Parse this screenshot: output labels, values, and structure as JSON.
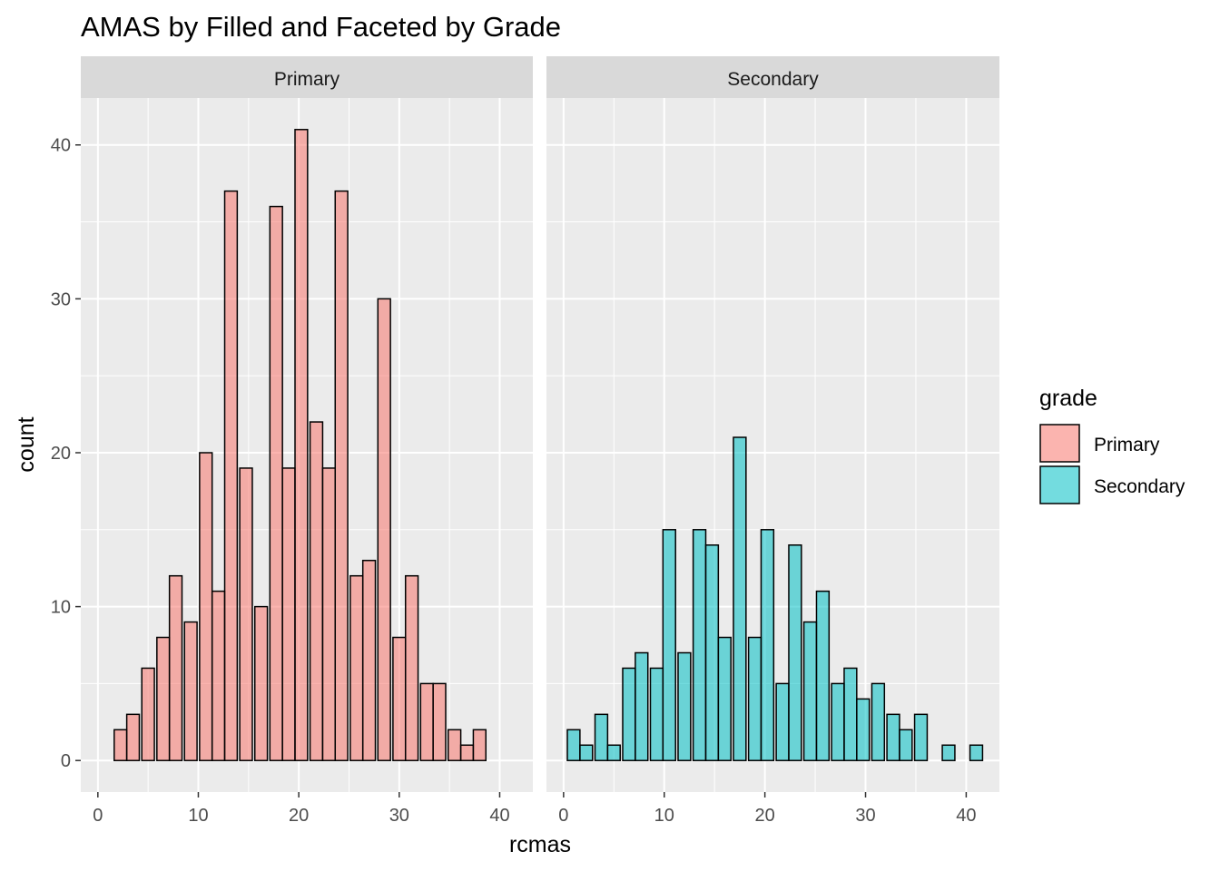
{
  "chart_data": {
    "type": "bar",
    "title": "AMAS by Filled and Faceted by Grade",
    "xlabel": "rcmas",
    "ylabel": "count",
    "xlim": [
      -1.7,
      43.3
    ],
    "ylim": [
      -2.05,
      43.05
    ],
    "xticks": [
      0,
      10,
      20,
      30,
      40
    ],
    "yticks": [
      0,
      10,
      20,
      30,
      40
    ],
    "grid": true,
    "legend": {
      "title": "grade",
      "position": "right",
      "entries": [
        {
          "label": "Primary",
          "color": "#F8766D"
        },
        {
          "label": "Secondary",
          "color": "#00BFC4"
        }
      ]
    },
    "facets": [
      {
        "label": "Primary",
        "color": "#F8766D",
        "bins": [
          {
            "x": 1.0,
            "count": 0
          },
          {
            "x": 2.25,
            "count": 2
          },
          {
            "x": 3.5,
            "count": 3
          },
          {
            "x": 5.0,
            "count": 6
          },
          {
            "x": 6.5,
            "count": 8
          },
          {
            "x": 7.75,
            "count": 12
          },
          {
            "x": 9.25,
            "count": 9
          },
          {
            "x": 10.75,
            "count": 20
          },
          {
            "x": 12.0,
            "count": 11
          },
          {
            "x": 13.25,
            "count": 37
          },
          {
            "x": 14.75,
            "count": 19
          },
          {
            "x": 16.25,
            "count": 10
          },
          {
            "x": 17.75,
            "count": 36
          },
          {
            "x": 19.0,
            "count": 19
          },
          {
            "x": 20.25,
            "count": 41
          },
          {
            "x": 21.75,
            "count": 22
          },
          {
            "x": 23.0,
            "count": 19
          },
          {
            "x": 24.25,
            "count": 37
          },
          {
            "x": 25.75,
            "count": 12
          },
          {
            "x": 27.0,
            "count": 13
          },
          {
            "x": 28.5,
            "count": 30
          },
          {
            "x": 30.0,
            "count": 8
          },
          {
            "x": 31.25,
            "count": 12
          },
          {
            "x": 32.75,
            "count": 5
          },
          {
            "x": 34.0,
            "count": 5
          },
          {
            "x": 35.5,
            "count": 2
          },
          {
            "x": 36.75,
            "count": 1
          },
          {
            "x": 38.0,
            "count": 2
          },
          {
            "x": 39.5,
            "count": 0
          },
          {
            "x": 40.75,
            "count": 0
          }
        ]
      },
      {
        "label": "Secondary",
        "color": "#00BFC4",
        "bins": [
          {
            "x": 1.0,
            "count": 2
          },
          {
            "x": 2.25,
            "count": 1
          },
          {
            "x": 3.75,
            "count": 3
          },
          {
            "x": 5.0,
            "count": 1
          },
          {
            "x": 6.5,
            "count": 6
          },
          {
            "x": 7.75,
            "count": 7
          },
          {
            "x": 9.25,
            "count": 6
          },
          {
            "x": 10.5,
            "count": 15
          },
          {
            "x": 12.0,
            "count": 7
          },
          {
            "x": 13.5,
            "count": 15
          },
          {
            "x": 14.75,
            "count": 14
          },
          {
            "x": 16.0,
            "count": 8
          },
          {
            "x": 17.5,
            "count": 21
          },
          {
            "x": 19.0,
            "count": 8
          },
          {
            "x": 20.25,
            "count": 15
          },
          {
            "x": 21.75,
            "count": 5
          },
          {
            "x": 23.0,
            "count": 14
          },
          {
            "x": 24.5,
            "count": 9
          },
          {
            "x": 25.75,
            "count": 11
          },
          {
            "x": 27.25,
            "count": 5
          },
          {
            "x": 28.5,
            "count": 6
          },
          {
            "x": 29.75,
            "count": 4
          },
          {
            "x": 31.25,
            "count": 5
          },
          {
            "x": 32.75,
            "count": 3
          },
          {
            "x": 34.0,
            "count": 2
          },
          {
            "x": 35.5,
            "count": 3
          },
          {
            "x": 36.75,
            "count": 0
          },
          {
            "x": 38.25,
            "count": 1
          },
          {
            "x": 39.5,
            "count": 0
          },
          {
            "x": 41.0,
            "count": 1
          }
        ]
      }
    ]
  }
}
